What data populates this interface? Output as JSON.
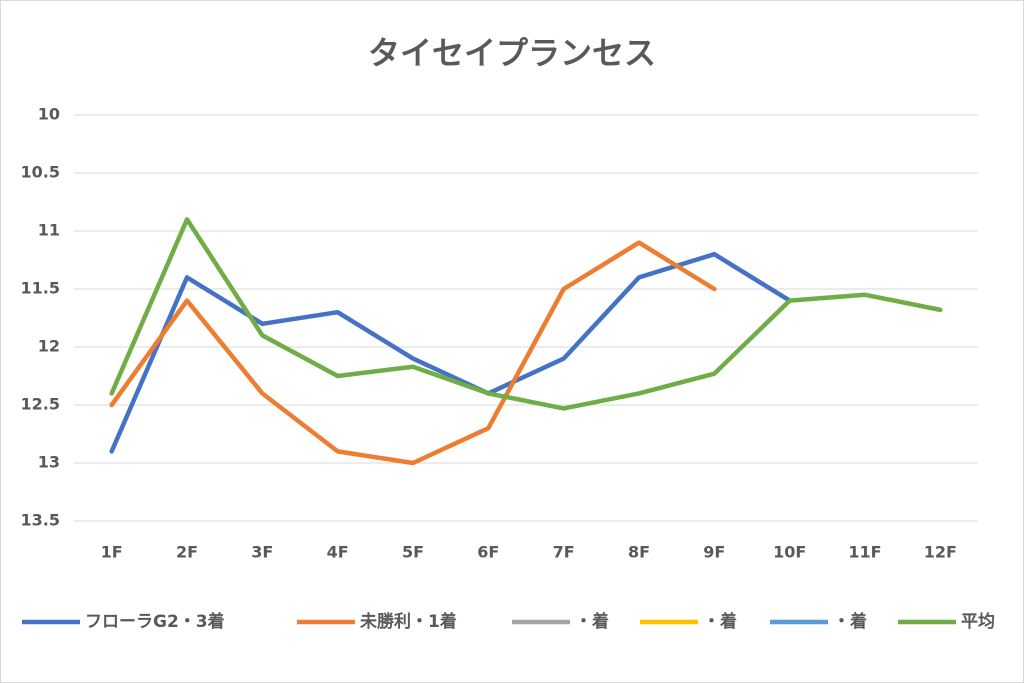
{
  "chart_data": {
    "type": "line",
    "title": "タイセイプランセス",
    "categories": [
      "1F",
      "2F",
      "3F",
      "4F",
      "5F",
      "6F",
      "7F",
      "8F",
      "9F",
      "10F",
      "11F",
      "12F"
    ],
    "series": [
      {
        "name": "フローラG2・3着",
        "color": "#4472c4",
        "values": [
          12.9,
          11.4,
          11.8,
          11.7,
          12.1,
          12.4,
          12.1,
          11.4,
          11.2,
          11.6,
          null,
          null
        ]
      },
      {
        "name": "未勝利・1着",
        "color": "#ed7d31",
        "values": [
          12.5,
          11.6,
          12.4,
          12.9,
          13.0,
          12.7,
          11.5,
          11.1,
          11.5,
          null,
          null,
          null
        ]
      },
      {
        "name": "・着",
        "color": "#a5a5a5",
        "values": [
          null,
          null,
          null,
          null,
          null,
          null,
          null,
          null,
          null,
          null,
          null,
          null
        ]
      },
      {
        "name": "・着",
        "color": "#ffc000",
        "values": [
          null,
          null,
          null,
          null,
          null,
          null,
          null,
          null,
          null,
          null,
          null,
          null
        ]
      },
      {
        "name": "・着",
        "color": "#5b9bd5",
        "values": [
          null,
          null,
          null,
          null,
          null,
          null,
          null,
          null,
          null,
          null,
          null,
          null
        ]
      },
      {
        "name": "平均",
        "color": "#70ad47",
        "values": [
          12.4,
          10.9,
          11.9,
          12.25,
          12.17,
          12.4,
          12.53,
          12.4,
          12.23,
          11.6,
          11.55,
          11.68
        ]
      }
    ],
    "ylim": [
      10,
      13.5
    ],
    "y_inverted": true,
    "yticks": [
      10,
      10.5,
      11,
      11.5,
      12,
      12.5,
      13,
      13.5
    ],
    "grid": true,
    "legend": "bottom"
  }
}
